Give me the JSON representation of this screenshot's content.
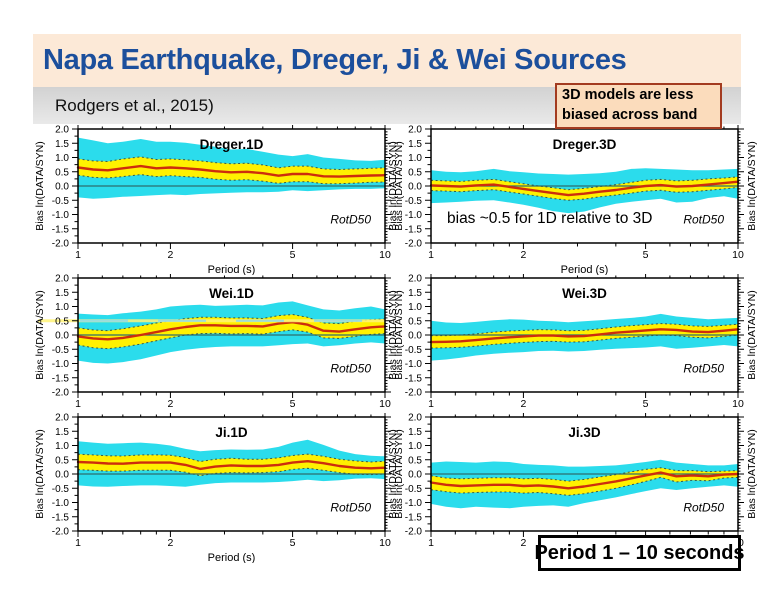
{
  "slide": {
    "title": "Napa Earthquake, Dreger, Ji & Wei Sources",
    "subtitle": "Rodgers et al., 2015)",
    "callout_top_right": "3D models are less biased across band",
    "bottom_box": "Period 1 – 10 seconds",
    "colors": {
      "title_text": "#1c4f9c",
      "title_band_bg": "#fce9d7",
      "subtitle_band_bg": "#d8d8d8",
      "callout_bg": "#fbdcbc",
      "callout_border": "#a33b20",
      "cyan_band": "#2bdcec",
      "yellow_band": "#fff100",
      "mean_line": "#cd2d0d",
      "dash_line": "#37584c",
      "zero_line": "#2e6e6e",
      "frame": "#000000",
      "highlight_yellow": "rgba(255,243,120,0.85)",
      "highlight_blue": "rgba(130,215,250,0.75)"
    }
  },
  "axes": {
    "xlabel": "Period (s)",
    "ylabel": "Bias ln(DATA/SYN)",
    "xscale": "log",
    "xlim": [
      1,
      10
    ],
    "ylim": [
      -2.0,
      2.0
    ],
    "xticks": [
      1,
      2,
      5,
      10
    ],
    "xminor": [
      1.2,
      1.4,
      1.6,
      1.8,
      3,
      4,
      6,
      7,
      8,
      9
    ],
    "ytick_step": 0.5,
    "grid": false
  },
  "chart_data": [
    {
      "type": "area",
      "id": "dreger-1d",
      "title": "Dreger.1D",
      "corner_label": "RotD50",
      "annotation": null,
      "highlight_y": null,
      "grid_pos": {
        "col": 0,
        "row": 0
      },
      "show_xlabel": true,
      "x": [
        1.0,
        1.12,
        1.25,
        1.4,
        1.6,
        1.8,
        2.0,
        2.24,
        2.5,
        2.8,
        3.15,
        3.55,
        4.0,
        4.5,
        5.0,
        5.6,
        6.3,
        7.1,
        8.0,
        9.0,
        10.0
      ],
      "mean": [
        0.65,
        0.58,
        0.55,
        0.62,
        0.7,
        0.62,
        0.65,
        0.62,
        0.58,
        0.52,
        0.48,
        0.5,
        0.45,
        0.36,
        0.42,
        0.42,
        0.34,
        0.33,
        0.35,
        0.37,
        0.38
      ],
      "yellow_hi": [
        0.95,
        0.88,
        0.86,
        0.95,
        1.02,
        0.93,
        0.95,
        0.92,
        0.88,
        0.82,
        0.78,
        0.8,
        0.74,
        0.64,
        0.7,
        0.7,
        0.6,
        0.58,
        0.6,
        0.62,
        0.64
      ],
      "yellow_lo": [
        0.38,
        0.3,
        0.28,
        0.33,
        0.4,
        0.33,
        0.36,
        0.33,
        0.3,
        0.24,
        0.2,
        0.22,
        0.17,
        0.09,
        0.15,
        0.15,
        0.08,
        0.08,
        0.1,
        0.13,
        0.14
      ],
      "cyan_hi": [
        1.7,
        1.6,
        1.5,
        1.55,
        1.65,
        1.55,
        1.55,
        1.52,
        1.45,
        1.38,
        1.28,
        1.3,
        1.2,
        1.1,
        1.05,
        1.12,
        1.0,
        0.95,
        0.9,
        0.88,
        0.92
      ],
      "cyan_lo": [
        -0.4,
        -0.45,
        -0.42,
        -0.38,
        -0.35,
        -0.32,
        -0.3,
        -0.32,
        -0.28,
        -0.26,
        -0.24,
        -0.22,
        -0.22,
        -0.2,
        -0.15,
        -0.18,
        -0.15,
        -0.12,
        -0.1,
        -0.1,
        -0.08
      ]
    },
    {
      "type": "area",
      "id": "dreger-3d",
      "title": "Dreger.3D",
      "corner_label": "RotD50",
      "annotation": "bias ~0.5 for 1D relative to 3D",
      "highlight_y": null,
      "grid_pos": {
        "col": 1,
        "row": 0
      },
      "show_xlabel": true,
      "x": [
        1.0,
        1.12,
        1.25,
        1.4,
        1.6,
        1.8,
        2.0,
        2.24,
        2.5,
        2.8,
        3.15,
        3.55,
        4.0,
        4.5,
        5.0,
        5.6,
        6.3,
        7.1,
        8.0,
        9.0,
        10.0
      ],
      "mean": [
        0.02,
        0.0,
        -0.02,
        0.02,
        0.05,
        -0.03,
        -0.1,
        -0.18,
        -0.25,
        -0.32,
        -0.27,
        -0.2,
        -0.14,
        -0.06,
        0.0,
        0.03,
        -0.02,
        0.0,
        0.05,
        0.1,
        0.15
      ],
      "yellow_hi": [
        0.2,
        0.18,
        0.16,
        0.2,
        0.23,
        0.15,
        0.08,
        0.0,
        -0.06,
        -0.13,
        -0.08,
        -0.02,
        0.05,
        0.13,
        0.2,
        0.23,
        0.18,
        0.2,
        0.25,
        0.28,
        0.32
      ],
      "yellow_lo": [
        -0.16,
        -0.18,
        -0.2,
        -0.16,
        -0.13,
        -0.21,
        -0.28,
        -0.36,
        -0.44,
        -0.5,
        -0.46,
        -0.38,
        -0.32,
        -0.25,
        -0.18,
        -0.15,
        -0.22,
        -0.2,
        -0.15,
        -0.1,
        -0.05
      ],
      "cyan_hi": [
        0.55,
        0.5,
        0.48,
        0.52,
        0.6,
        0.52,
        0.48,
        0.44,
        0.42,
        0.4,
        0.42,
        0.45,
        0.5,
        0.6,
        0.62,
        0.6,
        0.58,
        0.55,
        0.55,
        0.58,
        0.6
      ],
      "cyan_lo": [
        -0.6,
        -0.58,
        -0.55,
        -0.52,
        -0.5,
        -0.58,
        -0.66,
        -0.76,
        -0.88,
        -0.95,
        -0.9,
        -0.75,
        -0.62,
        -0.55,
        -0.5,
        -0.45,
        -0.58,
        -0.55,
        -0.42,
        -0.36,
        -0.45
      ]
    },
    {
      "type": "area",
      "id": "wei-1d",
      "title": "Wei.1D",
      "corner_label": "RotD50",
      "annotation": null,
      "highlight_y": 0.5,
      "grid_pos": {
        "col": 0,
        "row": 1
      },
      "show_xlabel": false,
      "x": [
        1.0,
        1.12,
        1.25,
        1.4,
        1.6,
        1.8,
        2.0,
        2.24,
        2.5,
        2.8,
        3.15,
        3.55,
        4.0,
        4.5,
        5.0,
        5.6,
        6.3,
        7.1,
        8.0,
        9.0,
        10.0
      ],
      "mean": [
        -0.05,
        -0.12,
        -0.15,
        -0.1,
        0.0,
        0.1,
        0.2,
        0.28,
        0.34,
        0.34,
        0.32,
        0.32,
        0.3,
        0.4,
        0.45,
        0.36,
        0.15,
        0.12,
        0.2,
        0.27,
        0.3
      ],
      "yellow_hi": [
        0.25,
        0.18,
        0.15,
        0.22,
        0.32,
        0.42,
        0.5,
        0.58,
        0.62,
        0.62,
        0.6,
        0.6,
        0.58,
        0.68,
        0.72,
        0.62,
        0.42,
        0.4,
        0.48,
        0.54,
        0.56
      ],
      "yellow_lo": [
        -0.35,
        -0.45,
        -0.48,
        -0.42,
        -0.32,
        -0.2,
        -0.1,
        0.0,
        0.05,
        0.06,
        0.04,
        0.05,
        0.03,
        0.12,
        0.18,
        0.1,
        -0.1,
        -0.12,
        -0.05,
        0.02,
        0.05
      ],
      "cyan_hi": [
        0.75,
        0.72,
        0.7,
        0.76,
        0.82,
        0.9,
        1.0,
        1.04,
        1.06,
        1.02,
        1.04,
        1.06,
        1.04,
        1.14,
        1.18,
        1.04,
        0.9,
        0.86,
        0.94,
        1.0,
        0.9
      ],
      "cyan_lo": [
        -0.9,
        -0.98,
        -1.0,
        -0.95,
        -0.85,
        -0.72,
        -0.6,
        -0.52,
        -0.46,
        -0.42,
        -0.4,
        -0.4,
        -0.4,
        -0.36,
        -0.32,
        -0.3,
        -0.4,
        -0.36,
        -0.3,
        -0.26,
        -0.3
      ]
    },
    {
      "type": "area",
      "id": "wei-3d",
      "title": "Wei.3D",
      "corner_label": "RotD50",
      "annotation": null,
      "highlight_y": null,
      "grid_pos": {
        "col": 1,
        "row": 1
      },
      "show_xlabel": false,
      "x": [
        1.0,
        1.12,
        1.25,
        1.4,
        1.6,
        1.8,
        2.0,
        2.24,
        2.5,
        2.8,
        3.15,
        3.55,
        4.0,
        4.5,
        5.0,
        5.6,
        6.3,
        7.1,
        8.0,
        9.0,
        10.0
      ],
      "mean": [
        -0.25,
        -0.24,
        -0.22,
        -0.18,
        -0.12,
        -0.08,
        -0.05,
        -0.02,
        -0.02,
        -0.05,
        -0.04,
        0.02,
        0.08,
        0.12,
        0.16,
        0.2,
        0.18,
        0.12,
        0.1,
        0.15,
        0.2
      ],
      "yellow_hi": [
        -0.02,
        -0.02,
        0.0,
        0.04,
        0.1,
        0.14,
        0.16,
        0.19,
        0.18,
        0.15,
        0.16,
        0.22,
        0.28,
        0.33,
        0.36,
        0.4,
        0.38,
        0.32,
        0.3,
        0.34,
        0.38
      ],
      "yellow_lo": [
        -0.46,
        -0.45,
        -0.43,
        -0.39,
        -0.33,
        -0.29,
        -0.26,
        -0.23,
        -0.22,
        -0.25,
        -0.24,
        -0.18,
        -0.12,
        -0.08,
        -0.04,
        0.0,
        -0.02,
        -0.08,
        -0.1,
        -0.05,
        0.0
      ],
      "cyan_hi": [
        0.5,
        0.44,
        0.42,
        0.46,
        0.52,
        0.55,
        0.54,
        0.5,
        0.48,
        0.45,
        0.48,
        0.52,
        0.56,
        0.6,
        0.65,
        0.74,
        0.65,
        0.6,
        0.55,
        0.58,
        0.6
      ],
      "cyan_lo": [
        -0.9,
        -0.86,
        -0.8,
        -0.72,
        -0.66,
        -0.62,
        -0.6,
        -0.56,
        -0.55,
        -0.58,
        -0.56,
        -0.52,
        -0.48,
        -0.46,
        -0.44,
        -0.4,
        -0.48,
        -0.45,
        -0.4,
        -0.35,
        -0.4
      ]
    },
    {
      "type": "area",
      "id": "ji-1d",
      "title": "Ji.1D",
      "corner_label": "RotD50",
      "annotation": null,
      "highlight_y": null,
      "grid_pos": {
        "col": 0,
        "row": 2
      },
      "show_xlabel": true,
      "x": [
        1.0,
        1.12,
        1.25,
        1.4,
        1.6,
        1.8,
        2.0,
        2.24,
        2.5,
        2.8,
        3.15,
        3.55,
        4.0,
        4.5,
        5.0,
        5.6,
        6.3,
        7.1,
        8.0,
        9.0,
        10.0
      ],
      "mean": [
        0.42,
        0.4,
        0.37,
        0.36,
        0.4,
        0.4,
        0.4,
        0.32,
        0.18,
        0.26,
        0.3,
        0.28,
        0.28,
        0.32,
        0.4,
        0.45,
        0.38,
        0.28,
        0.22,
        0.2,
        0.22
      ],
      "yellow_hi": [
        0.7,
        0.67,
        0.64,
        0.63,
        0.67,
        0.67,
        0.66,
        0.58,
        0.44,
        0.52,
        0.55,
        0.52,
        0.52,
        0.57,
        0.65,
        0.7,
        0.62,
        0.52,
        0.46,
        0.42,
        0.45
      ],
      "yellow_lo": [
        0.15,
        0.13,
        0.1,
        0.1,
        0.13,
        0.13,
        0.13,
        0.06,
        -0.06,
        0.02,
        0.05,
        0.04,
        0.05,
        0.08,
        0.16,
        0.2,
        0.13,
        0.05,
        -0.01,
        -0.02,
        0.0
      ],
      "cyan_hi": [
        1.15,
        1.1,
        1.06,
        1.08,
        1.1,
        1.06,
        1.0,
        0.88,
        0.8,
        0.84,
        0.86,
        0.85,
        0.86,
        0.95,
        1.1,
        1.2,
        1.02,
        0.82,
        0.7,
        0.64,
        0.62
      ],
      "cyan_lo": [
        -0.4,
        -0.44,
        -0.45,
        -0.42,
        -0.4,
        -0.4,
        -0.42,
        -0.45,
        -0.38,
        -0.32,
        -0.3,
        -0.3,
        -0.3,
        -0.28,
        -0.25,
        -0.2,
        -0.25,
        -0.22,
        -0.16,
        -0.15,
        -0.18
      ]
    },
    {
      "type": "area",
      "id": "ji-3d",
      "title": "Ji.3D",
      "corner_label": "RotD50",
      "annotation": null,
      "highlight_y": null,
      "grid_pos": {
        "col": 1,
        "row": 2
      },
      "show_xlabel": true,
      "x": [
        1.0,
        1.12,
        1.25,
        1.4,
        1.6,
        1.8,
        2.0,
        2.24,
        2.5,
        2.8,
        3.15,
        3.55,
        4.0,
        4.5,
        5.0,
        5.6,
        6.3,
        7.1,
        8.0,
        9.0,
        10.0
      ],
      "mean": [
        -0.3,
        -0.38,
        -0.42,
        -0.4,
        -0.38,
        -0.38,
        -0.42,
        -0.4,
        -0.44,
        -0.5,
        -0.44,
        -0.35,
        -0.26,
        -0.15,
        -0.05,
        0.05,
        -0.08,
        -0.05,
        -0.08,
        -0.02,
        0.0
      ],
      "yellow_hi": [
        -0.06,
        -0.14,
        -0.17,
        -0.15,
        -0.13,
        -0.13,
        -0.17,
        -0.15,
        -0.19,
        -0.25,
        -0.19,
        -0.1,
        -0.02,
        0.08,
        0.16,
        0.22,
        0.12,
        0.12,
        0.08,
        0.1,
        0.12
      ],
      "yellow_lo": [
        -0.55,
        -0.62,
        -0.67,
        -0.65,
        -0.63,
        -0.63,
        -0.67,
        -0.65,
        -0.69,
        -0.75,
        -0.69,
        -0.6,
        -0.5,
        -0.38,
        -0.26,
        -0.12,
        -0.28,
        -0.22,
        -0.24,
        -0.14,
        -0.12
      ],
      "cyan_hi": [
        0.4,
        0.44,
        0.42,
        0.4,
        0.44,
        0.42,
        0.35,
        0.32,
        0.3,
        0.26,
        0.26,
        0.28,
        0.3,
        0.36,
        0.42,
        0.5,
        0.4,
        0.35,
        0.3,
        0.3,
        0.35
      ],
      "cyan_lo": [
        -1.05,
        -1.15,
        -1.2,
        -1.15,
        -1.18,
        -1.2,
        -1.15,
        -1.12,
        -1.1,
        -1.15,
        -1.02,
        -0.92,
        -0.82,
        -0.7,
        -0.6,
        -0.5,
        -0.56,
        -0.5,
        -0.45,
        -0.4,
        -0.45
      ]
    }
  ]
}
